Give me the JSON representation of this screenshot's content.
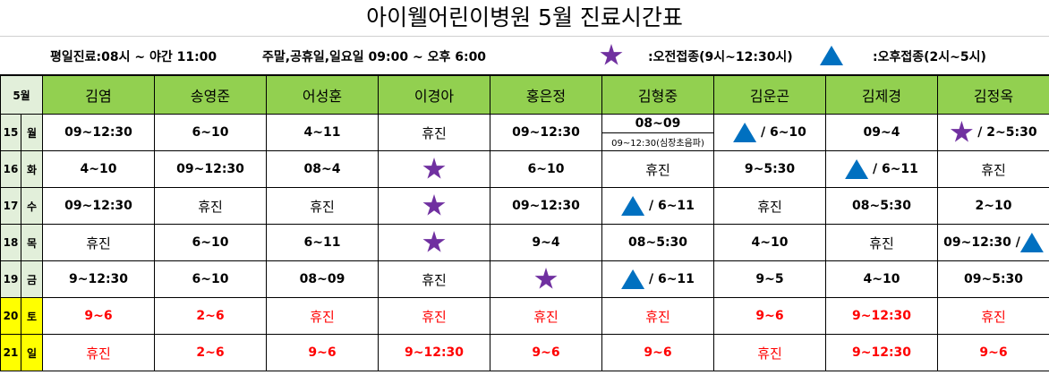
{
  "title": "아이웰어린이병원 5월 진료시간표",
  "info": {
    "weekday_hours": "평일진료:08시 ~ 야간 11:00",
    "weekend_hours": "주말,공휴일,일요일 09:00 ~ 오후 6:00",
    "legend": [
      {
        "icon": "star",
        "label": ":오전접종(9시~12:30시)"
      },
      {
        "icon": "triangle",
        "label": ":오후접종(2시~5시)"
      }
    ]
  },
  "colors": {
    "header": "#92d050",
    "side": "#e2efda",
    "weekend": "#ffff00",
    "weekend_text": "#ff0000",
    "star": "#7030a0",
    "triangle": "#0070c0"
  },
  "table": {
    "month_label": "5월",
    "doctors": [
      "김염",
      "송영준",
      "어성훈",
      "이경아",
      "홍은정",
      "김형중",
      "김운곤",
      "김제경",
      "김정옥"
    ],
    "rows": [
      {
        "day": "15",
        "weekday": "월",
        "weekend": false,
        "cells": [
          {
            "text": "09~12:30"
          },
          {
            "text": "6~10"
          },
          {
            "text": "4~11"
          },
          {
            "text": "휴진"
          },
          {
            "text": "09~12:30"
          },
          {
            "text": "08~09",
            "sub": "09~12:30(심장초음파)"
          },
          {
            "pre": "triangle",
            "text": " / 6~10"
          },
          {
            "text": "09~4"
          },
          {
            "pre": "star",
            "text": " / 2~5:30"
          }
        ]
      },
      {
        "day": "16",
        "weekday": "화",
        "weekend": false,
        "cells": [
          {
            "text": "4~10"
          },
          {
            "text": "09~12:30"
          },
          {
            "text": "08~4"
          },
          {
            "pre": "star",
            "text": ""
          },
          {
            "text": "6~10"
          },
          {
            "text": "휴진"
          },
          {
            "text": "9~5:30"
          },
          {
            "pre": "triangle",
            "text": " / 6~11"
          },
          {
            "text": "휴진"
          }
        ]
      },
      {
        "day": "17",
        "weekday": "수",
        "weekend": false,
        "cells": [
          {
            "text": "09~12:30"
          },
          {
            "text": "휴진"
          },
          {
            "text": "휴진"
          },
          {
            "pre": "star",
            "text": ""
          },
          {
            "text": "09~12:30"
          },
          {
            "pre": "triangle",
            "text": " / 6~11"
          },
          {
            "text": "휴진"
          },
          {
            "text": "08~5:30"
          },
          {
            "text": "2~10"
          }
        ]
      },
      {
        "day": "18",
        "weekday": "목",
        "weekend": false,
        "cells": [
          {
            "text": "휴진"
          },
          {
            "text": "6~10"
          },
          {
            "text": "6~11"
          },
          {
            "pre": "star",
            "text": ""
          },
          {
            "text": "9~4"
          },
          {
            "text": "08~5:30"
          },
          {
            "text": "4~10"
          },
          {
            "text": "휴진"
          },
          {
            "text": "09~12:30 /",
            "post": "triangle"
          }
        ]
      },
      {
        "day": "19",
        "weekday": "금",
        "weekend": false,
        "cells": [
          {
            "text": "9~12:30"
          },
          {
            "text": "6~10"
          },
          {
            "text": "08~09"
          },
          {
            "text": "휴진"
          },
          {
            "pre": "star",
            "text": ""
          },
          {
            "pre": "triangle",
            "text": " / 6~11"
          },
          {
            "text": "9~5"
          },
          {
            "text": "4~10"
          },
          {
            "text": "09~5:30"
          }
        ]
      },
      {
        "day": "20",
        "weekday": "토",
        "weekend": true,
        "cells": [
          {
            "text": "9~6"
          },
          {
            "text": "2~6"
          },
          {
            "text": "휴진"
          },
          {
            "text": "휴진"
          },
          {
            "text": "휴진"
          },
          {
            "text": "휴진"
          },
          {
            "text": "9~6"
          },
          {
            "text": "9~12:30"
          },
          {
            "text": "휴진"
          }
        ]
      },
      {
        "day": "21",
        "weekday": "일",
        "weekend": true,
        "cells": [
          {
            "text": "휴진"
          },
          {
            "text": "2~6"
          },
          {
            "text": "9~6"
          },
          {
            "text": "9~12:30"
          },
          {
            "text": "9~6"
          },
          {
            "text": "9~6"
          },
          {
            "text": "휴진"
          },
          {
            "text": "9~12:30"
          },
          {
            "text": "9~6"
          }
        ]
      }
    ]
  }
}
